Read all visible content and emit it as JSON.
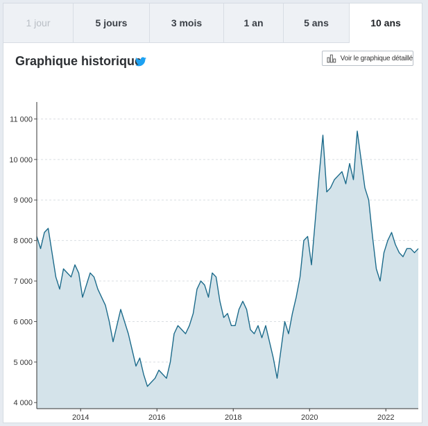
{
  "tabs": [
    {
      "label": "1 jour",
      "state": "disabled"
    },
    {
      "label": "5 jours",
      "state": "normal"
    },
    {
      "label": "3 mois",
      "state": "normal"
    },
    {
      "label": "1 an",
      "state": "normal"
    },
    {
      "label": "5 ans",
      "state": "normal"
    },
    {
      "label": "10 ans",
      "state": "active"
    }
  ],
  "header": {
    "title": "Graphique historique",
    "share_icon": "twitter-icon",
    "detail_button_label": "Voir le graphique détaillé",
    "detail_button_icon": "bar-chart-icon"
  },
  "colors": {
    "line": "#1b6a8a",
    "area": "#d4e3ea",
    "grid": "#d9dde2",
    "twitter": "#1da1f2"
  },
  "chart_data": {
    "type": "area",
    "title": "",
    "xlabel": "",
    "ylabel": "",
    "ylim": [
      3850,
      11350
    ],
    "xlim": [
      2012.85,
      2022.85
    ],
    "yticks": [
      {
        "value": 4000,
        "label": "4 000"
      },
      {
        "value": 5000,
        "label": "5 000"
      },
      {
        "value": 6000,
        "label": "6 000"
      },
      {
        "value": 7000,
        "label": "7 000"
      },
      {
        "value": 8000,
        "label": "8 000"
      },
      {
        "value": 9000,
        "label": "9 000"
      },
      {
        "value": 10000,
        "label": "10 000"
      },
      {
        "value": 11000,
        "label": "11 000"
      }
    ],
    "xticks": [
      {
        "value": 2014,
        "label": "2014"
      },
      {
        "value": 2016,
        "label": "2016"
      },
      {
        "value": 2018,
        "label": "2018"
      },
      {
        "value": 2020,
        "label": "2020"
      },
      {
        "value": 2022,
        "label": "2022"
      }
    ],
    "grid": "horizontal dashed",
    "series": [
      {
        "x": [
          2012.85,
          2012.95,
          2013.05,
          2013.15,
          2013.25,
          2013.35,
          2013.45,
          2013.55,
          2013.65,
          2013.75,
          2013.85,
          2013.95,
          2014.05,
          2014.15,
          2014.25,
          2014.35,
          2014.45,
          2014.55,
          2014.65,
          2014.75,
          2014.85,
          2014.95,
          2015.05,
          2015.15,
          2015.25,
          2015.35,
          2015.45,
          2015.55,
          2015.65,
          2015.75,
          2015.85,
          2015.95,
          2016.05,
          2016.15,
          2016.25,
          2016.35,
          2016.45,
          2016.55,
          2016.65,
          2016.75,
          2016.85,
          2016.95,
          2017.05,
          2017.15,
          2017.25,
          2017.35,
          2017.45,
          2017.55,
          2017.65,
          2017.75,
          2017.85,
          2017.95,
          2018.05,
          2018.15,
          2018.25,
          2018.35,
          2018.45,
          2018.55,
          2018.65,
          2018.75,
          2018.85,
          2018.95,
          2019.05,
          2019.15,
          2019.25,
          2019.35,
          2019.45,
          2019.55,
          2019.65,
          2019.75,
          2019.85,
          2019.95,
          2020.05,
          2020.15,
          2020.25,
          2020.35,
          2020.45,
          2020.55,
          2020.65,
          2020.75,
          2020.85,
          2020.95,
          2021.05,
          2021.15,
          2021.25,
          2021.35,
          2021.45,
          2021.55,
          2021.65,
          2021.75,
          2021.85,
          2021.95,
          2022.05,
          2022.15,
          2022.25,
          2022.35,
          2022.45,
          2022.55,
          2022.65,
          2022.75,
          2022.85
        ],
        "values": [
          8100,
          7800,
          8200,
          8300,
          7700,
          7100,
          6800,
          7300,
          7200,
          7100,
          7400,
          7200,
          6600,
          6900,
          7200,
          7100,
          6800,
          6600,
          6400,
          6000,
          5500,
          5900,
          6300,
          6000,
          5700,
          5300,
          4900,
          5100,
          4700,
          4400,
          4500,
          4600,
          4800,
          4700,
          4600,
          5000,
          5700,
          5900,
          5800,
          5700,
          5900,
          6200,
          6800,
          7000,
          6900,
          6600,
          7200,
          7100,
          6500,
          6100,
          6200,
          5900,
          5900,
          6300,
          6500,
          6300,
          5800,
          5700,
          5900,
          5600,
          5900,
          5500,
          5100,
          4600,
          5300,
          6000,
          5700,
          6200,
          6600,
          7100,
          8000,
          8100,
          7400,
          8500,
          9600,
          10600,
          9200,
          9300,
          9500,
          9600,
          9700,
          9400,
          9900,
          9500,
          10700,
          10000,
          9300,
          9000,
          8100,
          7300,
          7000,
          7700,
          8000,
          8200,
          7900,
          7700,
          7600,
          7800,
          7800,
          7700,
          7800
        ]
      }
    ]
  }
}
